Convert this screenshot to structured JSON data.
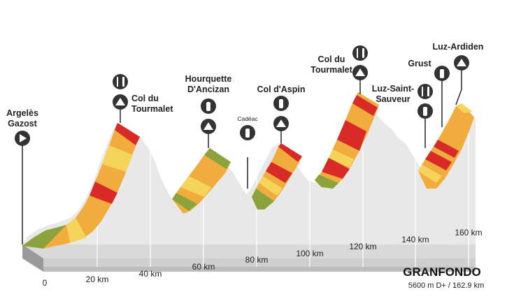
{
  "title": "GRANFONDO",
  "subtitle": "5600 m D+ / 162.9 km",
  "start_label": [
    "Argelès",
    "Gazost"
  ],
  "km_ticks": [
    "0",
    "20 km",
    "40 km",
    "60 km",
    "80 km",
    "100 km",
    "120 km",
    "140 km",
    "160 km"
  ],
  "places": {
    "tourmalet1": [
      "Col du",
      "Tourmalet"
    ],
    "hourquette": [
      "Hourquette",
      "D'Ancizan"
    ],
    "cadeac": "Cadéac",
    "aspin": "Col d'Aspin",
    "tourmalet2": [
      "Col du",
      "Tourmalet"
    ],
    "luzstsauveur": [
      "Luz-Saint-",
      "Sauveur"
    ],
    "grust": "Grust",
    "luzardiden": "Luz-Ardiden"
  },
  "icons": {
    "start": "play-icon",
    "food": "fork-knife-icon",
    "summit": "mountain-icon",
    "bottle": "water-bottle-icon"
  },
  "colors": {
    "profile_gray": "#e6e6e6",
    "yellow": "#f6d35a",
    "orange": "#f0ad3d",
    "red": "#d82a27",
    "green": "#8aa33c",
    "base_dark": "#333333"
  }
}
